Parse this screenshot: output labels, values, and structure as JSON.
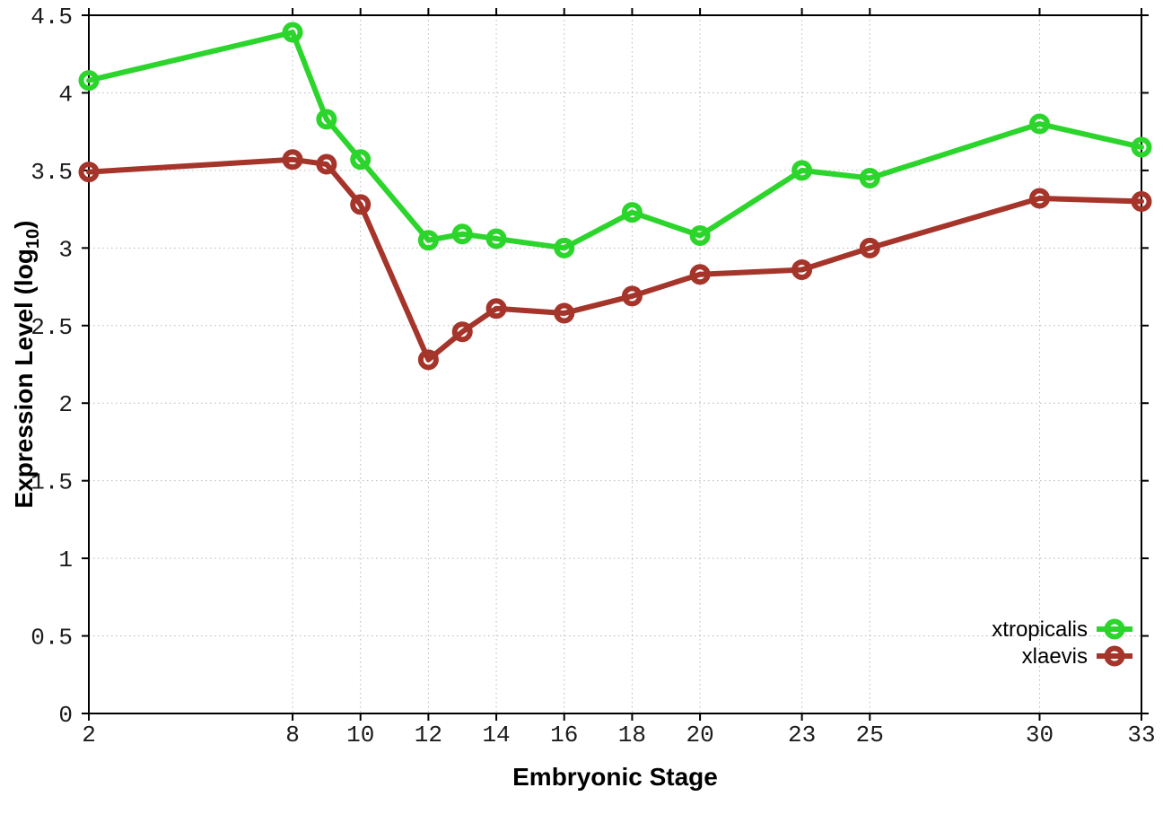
{
  "figure": {
    "background": "#ffffff",
    "border_color": "#000000",
    "grid_color": "#b8b8b8",
    "tick_label_color": "#1c1c1c",
    "axis_title_color": "#000000"
  },
  "chart_data": {
    "type": "line",
    "title": "",
    "xlabel": "Embryonic Stage",
    "ylabel": "Expression Level (log10)",
    "ylabel_parts": {
      "prefix": "Expression Level (log",
      "sub": "10",
      "suffix": ")"
    },
    "xlim": [
      2,
      33
    ],
    "ylim": [
      0,
      4.5
    ],
    "grid": true,
    "grid_style": "dotted",
    "legend_position": "inside-bottom-right",
    "x_ticks": [
      2,
      8,
      10,
      12,
      14,
      16,
      18,
      20,
      23,
      25,
      30,
      33
    ],
    "x_tick_labels": [
      "2",
      "8",
      "10",
      "12",
      "14",
      "16",
      "18",
      "20",
      "23",
      "25",
      "30",
      "33"
    ],
    "y_ticks": [
      0,
      0.5,
      1,
      1.5,
      2,
      2.5,
      3,
      3.5,
      4,
      4.5
    ],
    "y_tick_labels": [
      "0",
      "0.5",
      "1",
      "1.5",
      "2",
      "2.5",
      "3",
      "3.5",
      "4",
      "4.5"
    ],
    "x": [
      2,
      8,
      9,
      10,
      12,
      13,
      14,
      16,
      18,
      20,
      23,
      25,
      30,
      33
    ],
    "series": [
      {
        "name": "xtropicalis",
        "color": "#2bd52b",
        "marker": "open-circle",
        "values": [
          4.08,
          4.39,
          3.83,
          3.57,
          3.05,
          3.09,
          3.06,
          3.0,
          3.23,
          3.08,
          3.5,
          3.45,
          3.8,
          3.65
        ]
      },
      {
        "name": "xlaevis",
        "color": "#a5342a",
        "marker": "open-circle",
        "values": [
          3.49,
          3.57,
          3.54,
          3.28,
          2.28,
          2.46,
          2.61,
          2.58,
          2.69,
          2.83,
          2.86,
          3.0,
          3.32,
          3.3
        ]
      }
    ]
  }
}
